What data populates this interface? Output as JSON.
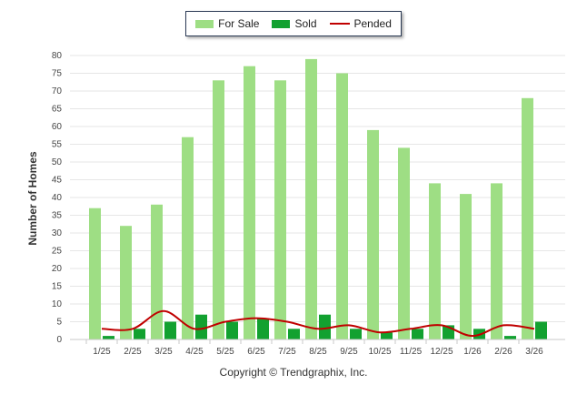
{
  "legend": {
    "for_sale": "For Sale",
    "sold": "Sold",
    "pended": "Pended"
  },
  "copyright": "Copyright © Trendgraphix, Inc.",
  "colors": {
    "for_sale": "#9ede84",
    "sold": "#12a130",
    "pended": "#c00000",
    "grid": "#e6e6e6",
    "axis_text": "#444444"
  },
  "chart_data": {
    "type": "bar",
    "title": "",
    "xlabel": "",
    "ylabel": "Number of Homes",
    "ylim": [
      0,
      80
    ],
    "yticks": [
      0,
      5,
      10,
      15,
      20,
      25,
      30,
      35,
      40,
      45,
      50,
      55,
      60,
      65,
      70,
      75,
      80
    ],
    "grid": true,
    "legend_position": "top-center",
    "categories": [
      "1/25",
      "2/25",
      "3/25",
      "4/25",
      "5/25",
      "6/25",
      "7/25",
      "8/25",
      "9/25",
      "10/25",
      "11/25",
      "12/25",
      "1/26",
      "2/26",
      "3/26"
    ],
    "series": [
      {
        "name": "For Sale",
        "type": "bar",
        "values": [
          37,
          32,
          38,
          57,
          73,
          77,
          73,
          79,
          75,
          59,
          54,
          44,
          41,
          44,
          68
        ]
      },
      {
        "name": "Sold",
        "type": "bar",
        "values": [
          1,
          3,
          5,
          7,
          5,
          6,
          3,
          7,
          3,
          2,
          3,
          4,
          3,
          1,
          5
        ]
      },
      {
        "name": "Pended",
        "type": "line",
        "values": [
          3,
          3,
          8,
          3,
          5,
          6,
          5,
          3,
          4,
          2,
          3,
          4,
          1,
          4,
          3
        ]
      }
    ]
  }
}
